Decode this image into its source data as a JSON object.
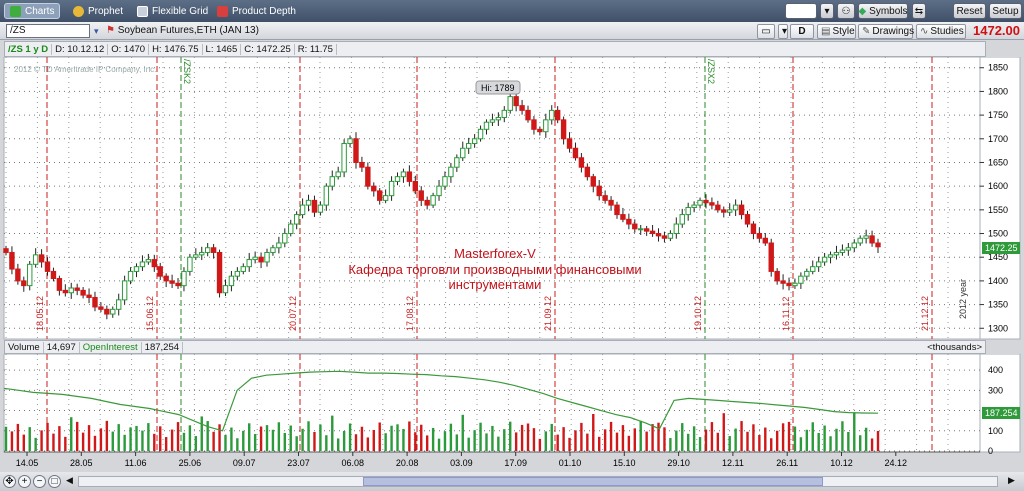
{
  "nav": {
    "tabs": [
      {
        "label": "Charts",
        "icon": "charts-icon"
      },
      {
        "label": "Prophet",
        "icon": "prophet-icon"
      },
      {
        "label": "Flexible Grid",
        "icon": "grid-icon"
      },
      {
        "label": "Product Depth",
        "icon": "depth-icon"
      }
    ],
    "right_buttons": {
      "symbols": "Symbols",
      "reset": "Reset",
      "setup": "Setup"
    }
  },
  "symbol_bar": {
    "symbol": "/ZS",
    "description": "Soybean Futures,ETH (JAN 13)",
    "period_button": "D",
    "style": "Style",
    "drawings": "Drawings",
    "studies": "Studies",
    "last_price": "1472.00"
  },
  "info": {
    "symbol": "/ZS 1 y D",
    "date": "D: 10.12.12",
    "open": "O: 1470",
    "high": "H: 1476.75",
    "low": "L: 1465",
    "close": "C: 1472.25",
    "range": "R: 11.75"
  },
  "volume_header": {
    "volume_label": "Volume",
    "volume_value": "14,697",
    "oi_label": "OpenInterest",
    "oi_value": "187,254",
    "units": "<thousands>"
  },
  "chart_text": {
    "copyright": "2012 © TD Ameritrade IP Company, Inc.",
    "hi_label": "Hi: 1789",
    "watermark1": "Masterforex-V",
    "watermark2": "Кафедра торговли производными финансовыми",
    "watermark3": "инструментами",
    "price_badge": "1472.25",
    "oi_badge": "187.254",
    "year_label": "2012 year"
  },
  "chart_data": {
    "type": "candlestick",
    "price_ticks": [
      "1850",
      "1800",
      "1750",
      "1700",
      "1650",
      "1600",
      "1550",
      "1500",
      "1450",
      "1400",
      "1350",
      "1300"
    ],
    "price_range": [
      1290,
      1860
    ],
    "volume_ticks": [
      "400",
      "300",
      "200",
      "100",
      "0"
    ],
    "date_ticks": [
      "14.05",
      "28.05",
      "11.06",
      "25.06",
      "09.07",
      "23.07",
      "06.08",
      "20.08",
      "03.09",
      "17.09",
      "01.10",
      "15.10",
      "29.10",
      "12.11",
      "26.11",
      "10.12",
      "24.12"
    ],
    "expiry_lines": [
      {
        "label": "/ZSK2",
        "index": 39
      },
      {
        "label": "/ZSX2",
        "index": 164
      }
    ],
    "period_lines": [
      "18.05.12",
      "15.06.12",
      "20.07.12",
      "17.08.12",
      "21.09.12",
      "19.10.12",
      "16.11.12",
      "21.12.12"
    ],
    "closes": [
      1460,
      1425,
      1400,
      1390,
      1435,
      1455,
      1440,
      1420,
      1405,
      1380,
      1375,
      1385,
      1380,
      1370,
      1365,
      1345,
      1340,
      1330,
      1340,
      1360,
      1400,
      1420,
      1430,
      1440,
      1445,
      1430,
      1410,
      1400,
      1395,
      1390,
      1420,
      1450,
      1455,
      1460,
      1470,
      1460,
      1375,
      1390,
      1410,
      1420,
      1430,
      1445,
      1450,
      1440,
      1460,
      1470,
      1480,
      1500,
      1520,
      1540,
      1560,
      1570,
      1545,
      1560,
      1600,
      1620,
      1630,
      1690,
      1700,
      1650,
      1640,
      1600,
      1590,
      1570,
      1580,
      1610,
      1620,
      1630,
      1610,
      1590,
      1570,
      1560,
      1580,
      1600,
      1620,
      1640,
      1660,
      1680,
      1690,
      1700,
      1720,
      1735,
      1740,
      1745,
      1760,
      1789,
      1770,
      1760,
      1740,
      1720,
      1715,
      1740,
      1760,
      1740,
      1700,
      1680,
      1660,
      1640,
      1620,
      1600,
      1580,
      1570,
      1560,
      1540,
      1530,
      1520,
      1510,
      1510,
      1505,
      1500,
      1495,
      1490,
      1500,
      1520,
      1540,
      1555,
      1560,
      1570,
      1565,
      1560,
      1550,
      1545,
      1550,
      1560,
      1540,
      1520,
      1500,
      1490,
      1480,
      1420,
      1400,
      1395,
      1390,
      1395,
      1410,
      1420,
      1430,
      1440,
      1450,
      1455,
      1460,
      1465,
      1470,
      1480,
      1490,
      1495,
      1480,
      1472
    ],
    "open_interest_thousands": [
      310,
      300,
      290,
      285,
      280,
      270,
      260,
      245,
      230,
      220,
      210,
      195,
      180,
      150,
      120,
      100,
      300,
      360,
      375,
      380,
      385,
      390,
      392,
      394,
      390,
      385,
      385,
      383,
      380,
      378,
      372,
      368,
      360,
      352,
      340,
      325,
      305,
      285,
      260,
      240,
      220,
      200,
      180,
      165,
      140,
      110,
      250,
      260,
      255,
      250,
      245,
      240,
      235,
      228,
      222,
      215,
      205,
      195,
      190,
      188,
      187
    ]
  }
}
